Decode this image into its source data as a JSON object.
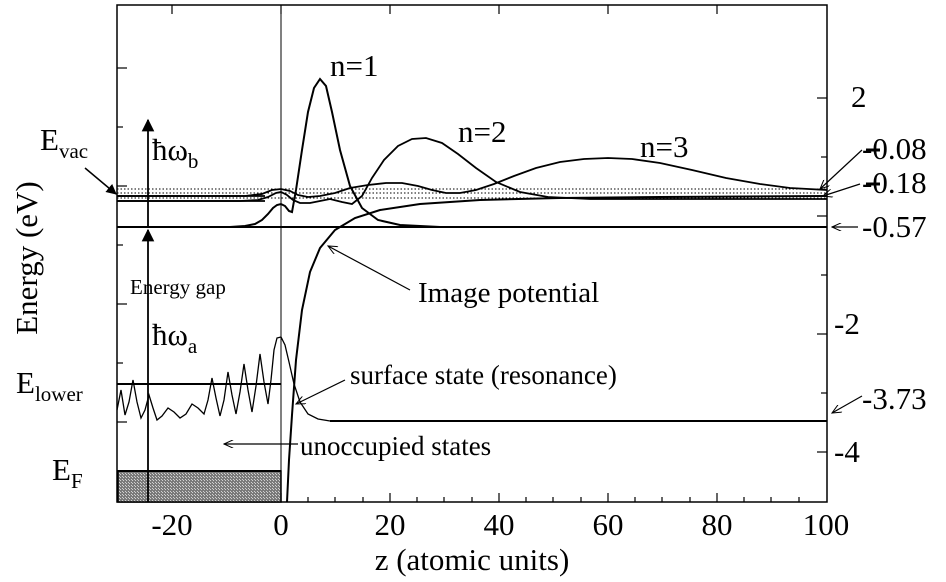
{
  "axes": {
    "xlabel": "z (atomic units)",
    "ylabel": "Energy (eV)",
    "x_ticks": [
      "-20",
      "0",
      "20",
      "40",
      "60",
      "80",
      "100"
    ],
    "y_ticks": [
      "2",
      "-2",
      "-4"
    ],
    "xlim": [
      -30,
      100
    ],
    "ylim": [
      -5.3,
      3.1
    ]
  },
  "levels": {
    "n1": "-0.57",
    "n2": "-0.18",
    "n3": "-0.08",
    "surface": "-3.73"
  },
  "labels": {
    "n1": "n=1",
    "n2": "n=2",
    "n3": "n=3",
    "evac_main": "E",
    "evac_sub": "vac",
    "elower_main": "E",
    "elower_sub": "lower",
    "ef_main": "E",
    "ef_sub": "F",
    "hw_b_main": "ħω",
    "hw_b_sub": "b",
    "hw_a_main": "ħω",
    "hw_a_sub": "a",
    "energy_gap": "Energy gap",
    "image_potential": "Image potential",
    "surface_state": "surface state (resonance)",
    "unoccupied": "unoccupied states"
  },
  "colors": {
    "line": "#000000",
    "fill_hatch": "#888888",
    "background": "#ffffff"
  }
}
